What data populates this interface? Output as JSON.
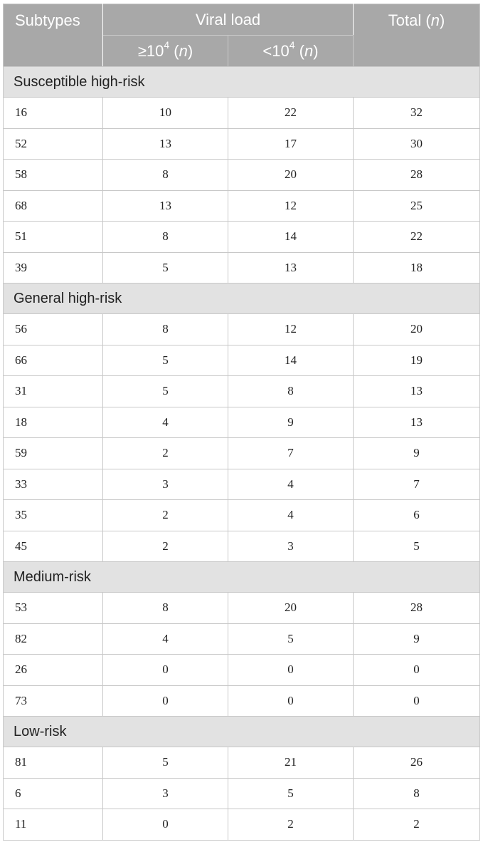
{
  "header": {
    "subtypes": "Subtypes",
    "viral_load": "Viral load",
    "total": "Total",
    "total_n": "n",
    "col_ge_prefix": "≥10",
    "col_lt_prefix": "<10",
    "exponent": "4",
    "n": "n"
  },
  "sections": [
    {
      "title": "Susceptible high-risk",
      "rows": [
        {
          "subtype": "16",
          "ge": "10",
          "lt": "22",
          "total": "32"
        },
        {
          "subtype": "52",
          "ge": "13",
          "lt": "17",
          "total": "30"
        },
        {
          "subtype": "58",
          "ge": "8",
          "lt": "20",
          "total": "28"
        },
        {
          "subtype": "68",
          "ge": "13",
          "lt": "12",
          "total": "25"
        },
        {
          "subtype": "51",
          "ge": "8",
          "lt": "14",
          "total": "22"
        },
        {
          "subtype": "39",
          "ge": "5",
          "lt": "13",
          "total": "18"
        }
      ]
    },
    {
      "title": "General high-risk",
      "rows": [
        {
          "subtype": "56",
          "ge": "8",
          "lt": "12",
          "total": "20"
        },
        {
          "subtype": "66",
          "ge": "5",
          "lt": "14",
          "total": "19"
        },
        {
          "subtype": "31",
          "ge": "5",
          "lt": "8",
          "total": "13"
        },
        {
          "subtype": "18",
          "ge": "4",
          "lt": "9",
          "total": "13"
        },
        {
          "subtype": "59",
          "ge": "2",
          "lt": "7",
          "total": "9"
        },
        {
          "subtype": "33",
          "ge": "3",
          "lt": "4",
          "total": "7"
        },
        {
          "subtype": "35",
          "ge": "2",
          "lt": "4",
          "total": "6"
        },
        {
          "subtype": "45",
          "ge": "2",
          "lt": "3",
          "total": "5"
        }
      ]
    },
    {
      "title": "Medium-risk",
      "rows": [
        {
          "subtype": "53",
          "ge": "8",
          "lt": "20",
          "total": "28"
        },
        {
          "subtype": "82",
          "ge": "4",
          "lt": "5",
          "total": "9"
        },
        {
          "subtype": "26",
          "ge": "0",
          "lt": "0",
          "total": "0"
        },
        {
          "subtype": "73",
          "ge": "0",
          "lt": "0",
          "total": "0"
        }
      ]
    },
    {
      "title": "Low-risk",
      "rows": [
        {
          "subtype": "81",
          "ge": "5",
          "lt": "21",
          "total": "26"
        },
        {
          "subtype": "6",
          "ge": "3",
          "lt": "5",
          "total": "8"
        },
        {
          "subtype": "11",
          "ge": "0",
          "lt": "2",
          "total": "2"
        }
      ]
    }
  ]
}
